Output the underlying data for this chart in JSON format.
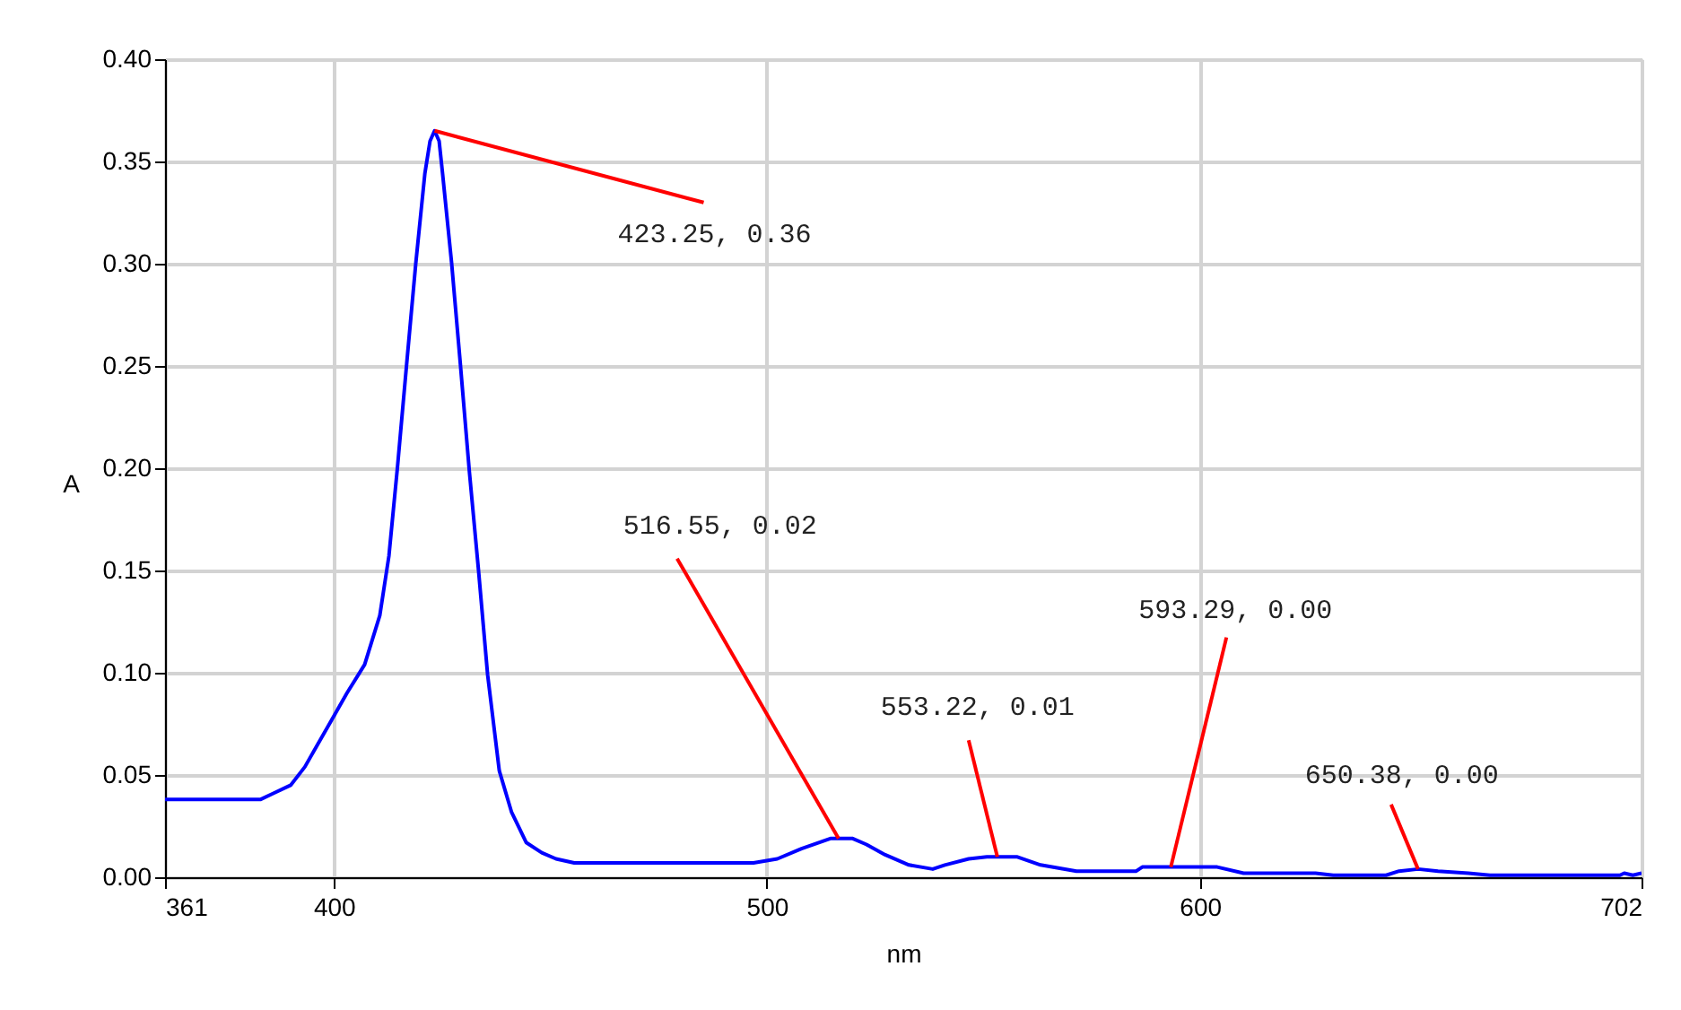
{
  "chart_data": {
    "type": "line",
    "xlabel": "nm",
    "ylabel": "A",
    "xlim": [
      361,
      702
    ],
    "xticks": [
      361,
      400,
      500,
      600,
      702
    ],
    "ylim": [
      0,
      0.4
    ],
    "yticks": [
      {
        "value": 0,
        "label": "0.00"
      },
      {
        "value": 0.05,
        "label": "0.05"
      },
      {
        "value": 0.1,
        "label": "0.10"
      },
      {
        "value": 0.15,
        "label": "0.15"
      },
      {
        "value": 0.2,
        "label": "0.20"
      },
      {
        "value": 0.25,
        "label": "0.25"
      },
      {
        "value": 0.3,
        "label": "0.30"
      },
      {
        "value": 0.35,
        "label": "0.35"
      },
      {
        "value": 0.4,
        "label": "0.40"
      }
    ],
    "grid": true,
    "marker": "none",
    "line_style": "solid",
    "series": [
      {
        "color": "#0000ff",
        "x": [
          361,
          383,
          386,
          390,
          393.3,
          396,
          399.5,
          403,
          407.1,
          410.6,
          412.7,
          414.7,
          416.8,
          418.9,
          421,
          422.2,
          423.25,
          424.3,
          425.1,
          427.2,
          429.2,
          431.3,
          433.4,
          435.5,
          438.2,
          441,
          444.4,
          448,
          451.3,
          455.5,
          496.9,
          502.4,
          508,
          514.8,
          519.7,
          523,
          527.3,
          532.8,
          538.3,
          541.1,
          546.6,
          550.8,
          557.7,
          563.2,
          571.5,
          585.3,
          586.7,
          604,
          610.1,
          626.7,
          630.8,
          643,
          646,
          650.4,
          655,
          662,
          667,
          697,
          698,
          700,
          702
        ],
        "values": [
          0.038,
          0.038,
          0.041,
          0.045,
          0.054,
          0.064,
          0.077,
          0.09,
          0.104,
          0.128,
          0.157,
          0.201,
          0.251,
          0.3,
          0.344,
          0.36,
          0.365,
          0.36,
          0.344,
          0.3,
          0.251,
          0.198,
          0.15,
          0.099,
          0.052,
          0.032,
          0.017,
          0.012,
          0.009,
          0.007,
          0.007,
          0.009,
          0.014,
          0.019,
          0.019,
          0.016,
          0.011,
          0.006,
          0.004,
          0.006,
          0.009,
          0.01,
          0.01,
          0.006,
          0.003,
          0.003,
          0.005,
          0.005,
          0.002,
          0.002,
          0.001,
          0.001,
          0.003,
          0.004,
          0.003,
          0.002,
          0.001,
          0.001,
          0.002,
          0.001,
          0.002
        ]
      }
    ],
    "annotations": [
      {
        "text": "423.25, 0.36",
        "x": 423.25,
        "y": 0.365
      },
      {
        "text": "516.55, 0.02",
        "x": 516.55,
        "y": 0.019
      },
      {
        "text": "553.22, 0.01",
        "x": 553.22,
        "y": 0.01
      },
      {
        "text": "593.29, 0.00",
        "x": 593.29,
        "y": 0.005
      },
      {
        "text": "650.38, 0.00",
        "x": 650.38,
        "y": 0.004
      }
    ]
  }
}
